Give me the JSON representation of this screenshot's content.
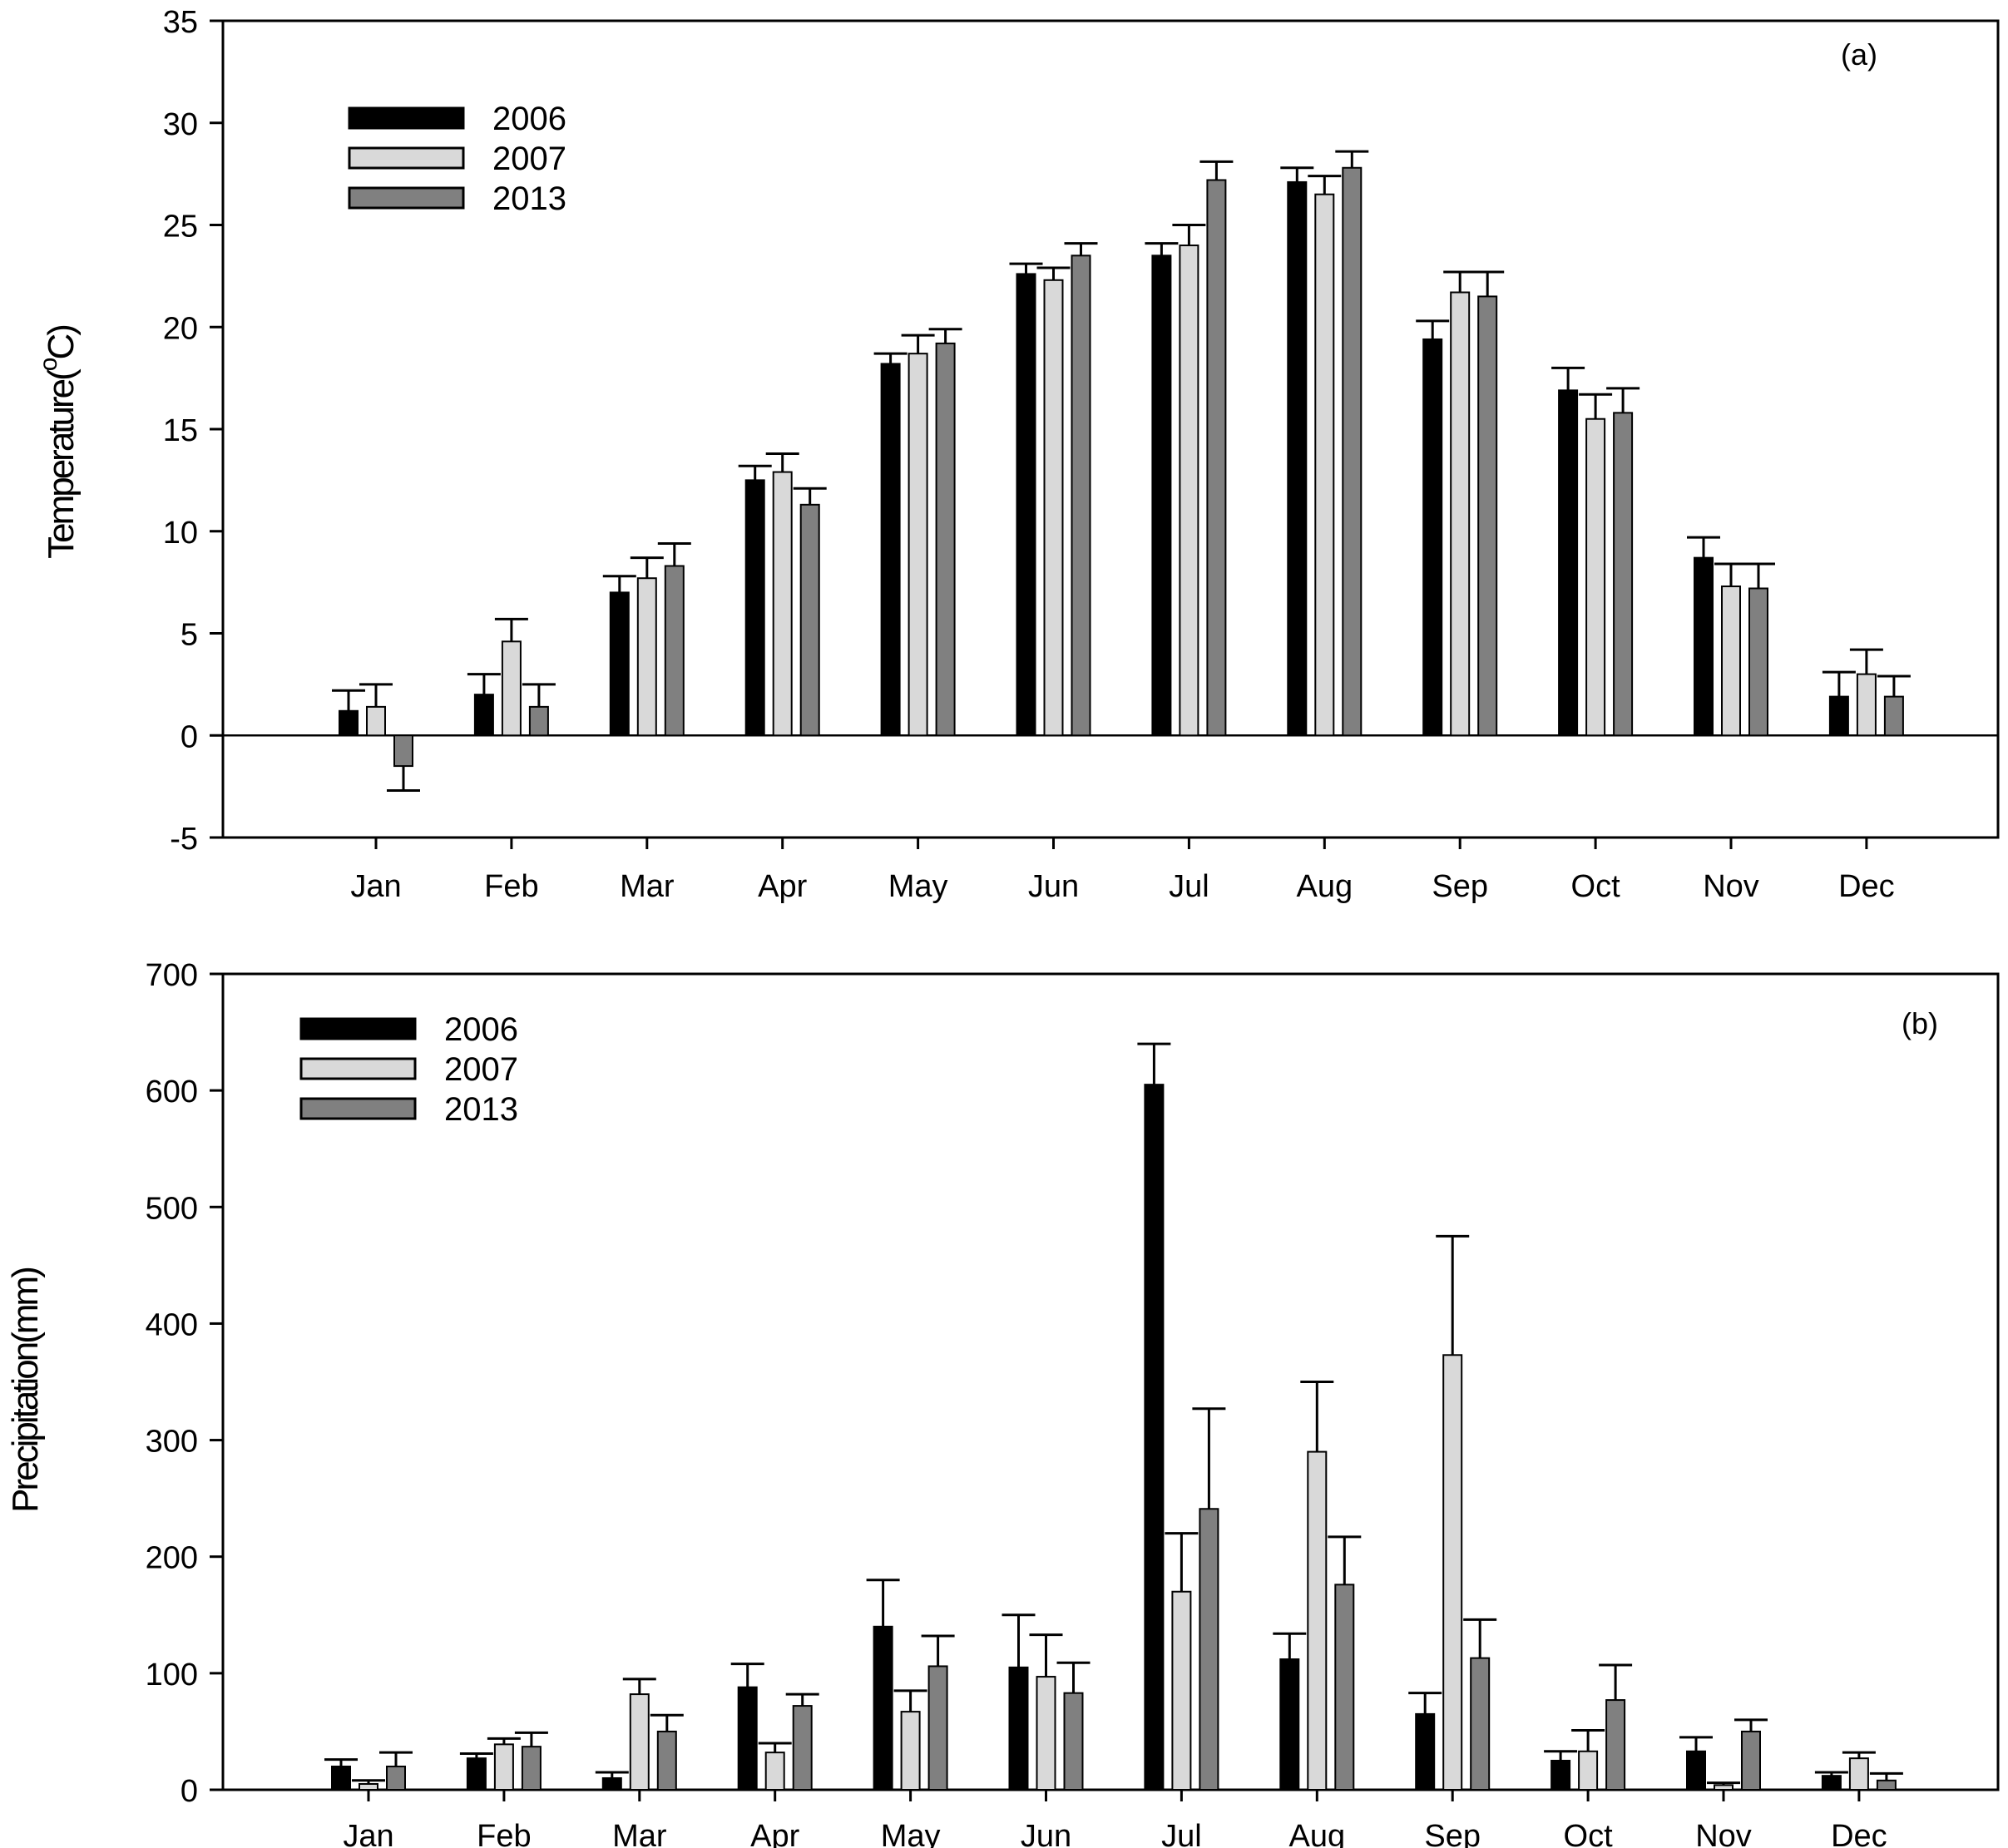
{
  "colors": {
    "series_2006": "#000000",
    "series_2007": "#d9d9d9",
    "series_2013": "#808080",
    "axis": "#000000",
    "background": "#ffffff"
  },
  "chart_data": [
    {
      "id": "temperature",
      "type": "bar",
      "panel_label": "(a)",
      "title": "",
      "xlabel": "",
      "ylabel": "Temperature(°C)",
      "ylabel_main": "Temperature(",
      "ylabel_sup": "o",
      "ylabel_unit": "C)",
      "ylim": [
        -5,
        35
      ],
      "yticks": [
        "-5",
        "0",
        "5",
        "10",
        "15",
        "20",
        "25",
        "30",
        "35"
      ],
      "legend_position": "top-left",
      "categories": [
        "Jan",
        "Feb",
        "Mar",
        "Apr",
        "May",
        "Jun",
        "Jul",
        "Aug",
        "Sep",
        "Oct",
        "Nov",
        "Dec"
      ],
      "series": [
        {
          "name": "2006",
          "values": [
            1.2,
            2.0,
            7.0,
            12.5,
            18.2,
            22.6,
            23.5,
            27.1,
            19.4,
            16.9,
            8.7,
            1.9
          ],
          "errors": [
            1.0,
            1.0,
            0.8,
            0.7,
            0.5,
            0.5,
            0.6,
            0.7,
            0.9,
            1.1,
            1.0,
            1.2
          ]
        },
        {
          "name": "2007",
          "values": [
            1.4,
            4.6,
            7.7,
            12.9,
            18.7,
            22.3,
            24.0,
            26.5,
            21.7,
            15.5,
            7.3,
            3.0
          ],
          "errors": [
            1.1,
            1.1,
            1.0,
            0.9,
            0.9,
            0.6,
            1.0,
            0.9,
            1.0,
            1.2,
            1.1,
            1.2
          ]
        },
        {
          "name": "2013",
          "values": [
            -1.5,
            1.4,
            8.3,
            11.3,
            19.2,
            23.5,
            27.2,
            27.8,
            21.5,
            15.8,
            7.2,
            1.9
          ],
          "errors": [
            1.2,
            1.1,
            1.1,
            0.8,
            0.7,
            0.6,
            0.9,
            0.8,
            1.2,
            1.2,
            1.2,
            1.0
          ]
        }
      ]
    },
    {
      "id": "precipitation",
      "type": "bar",
      "panel_label": "(b)",
      "title": "",
      "xlabel": "",
      "ylabel": "Precipitation(mm)",
      "ylim": [
        0,
        700
      ],
      "yticks": [
        "0",
        "100",
        "200",
        "300",
        "400",
        "500",
        "600",
        "700"
      ],
      "legend_position": "top-left",
      "categories": [
        "Jan",
        "Feb",
        "Mar",
        "Apr",
        "May",
        "Jun",
        "Jul",
        "Aug",
        "Sep",
        "Oct",
        "Nov",
        "Dec"
      ],
      "series": [
        {
          "name": "2006",
          "values": [
            20,
            27,
            10,
            88,
            140,
            105,
            605,
            112,
            65,
            25,
            33,
            12
          ],
          "errors": [
            6,
            4,
            5,
            20,
            40,
            45,
            35,
            22,
            18,
            8,
            12,
            3
          ]
        },
        {
          "name": "2007",
          "values": [
            5,
            39,
            82,
            32,
            67,
            97,
            170,
            290,
            373,
            33,
            4,
            27
          ],
          "errors": [
            3,
            5,
            13,
            8,
            18,
            36,
            50,
            60,
            102,
            18,
            2,
            5
          ]
        },
        {
          "name": "2013",
          "values": [
            20,
            37,
            50,
            72,
            106,
            83,
            241,
            176,
            113,
            77,
            50,
            8
          ],
          "errors": [
            12,
            12,
            14,
            10,
            26,
            26,
            86,
            41,
            33,
            30,
            10,
            6
          ]
        }
      ]
    }
  ]
}
